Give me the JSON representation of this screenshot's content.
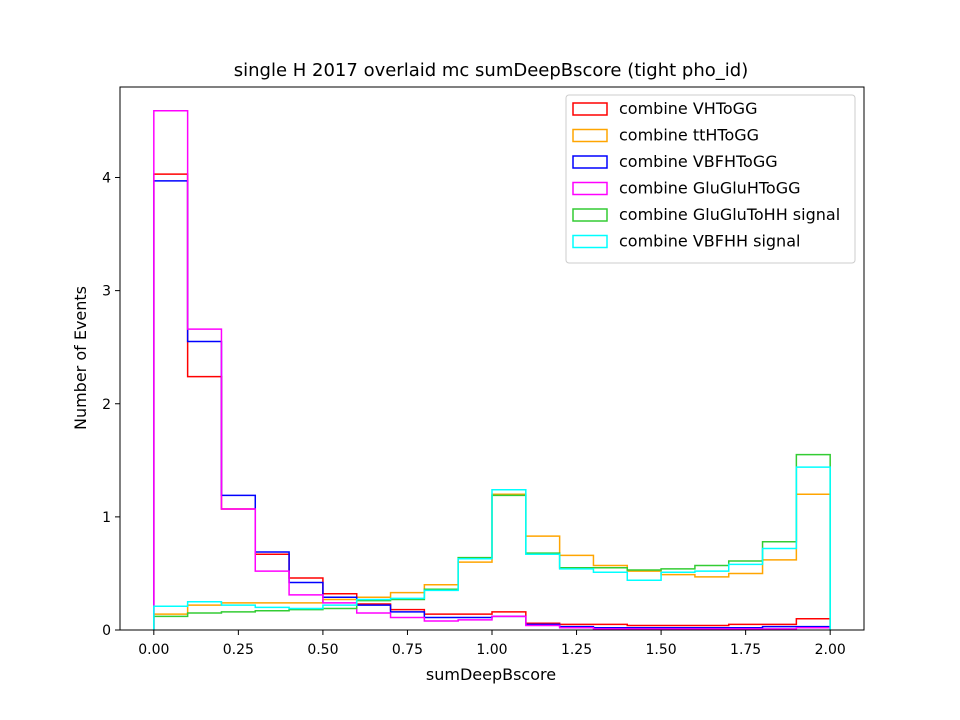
{
  "chart_data": {
    "type": "step-histogram",
    "title": "single H 2017 overlaid mc sumDeepBscore (tight pho_id)",
    "xlabel": "sumDeepBscore",
    "ylabel": "Number of Events",
    "xlim": [
      -0.1,
      2.1
    ],
    "ylim": [
      0,
      4.8
    ],
    "xticks": [
      0.0,
      0.25,
      0.5,
      0.75,
      1.0,
      1.25,
      1.5,
      1.75,
      2.0
    ],
    "xtick_labels": [
      "0.00",
      "0.25",
      "0.50",
      "0.75",
      "1.00",
      "1.25",
      "1.50",
      "1.75",
      "2.00"
    ],
    "yticks": [
      0,
      1,
      2,
      3,
      4
    ],
    "ytick_labels": [
      "0",
      "1",
      "2",
      "3",
      "4"
    ],
    "bin_edges": [
      0.0,
      0.1,
      0.2,
      0.3,
      0.4,
      0.5,
      0.6,
      0.7,
      0.8,
      0.9,
      1.0,
      1.1,
      1.2,
      1.3,
      1.4,
      1.5,
      1.6,
      1.7,
      1.8,
      1.9,
      2.0
    ],
    "legend_position": "upper-right",
    "grid": false,
    "series": [
      {
        "name": "combine VHToGG",
        "color": "#ff0000",
        "values": [
          4.03,
          2.24,
          1.07,
          0.67,
          0.46,
          0.32,
          0.23,
          0.18,
          0.14,
          0.14,
          0.16,
          0.06,
          0.05,
          0.05,
          0.04,
          0.04,
          0.04,
          0.05,
          0.05,
          0.1
        ]
      },
      {
        "name": "combine ttHToGG",
        "color": "#ffa500",
        "values": [
          0.14,
          0.22,
          0.24,
          0.24,
          0.24,
          0.27,
          0.29,
          0.33,
          0.4,
          0.6,
          1.2,
          0.83,
          0.66,
          0.57,
          0.52,
          0.49,
          0.47,
          0.5,
          0.62,
          1.2
        ]
      },
      {
        "name": "combine VBFHToGG",
        "color": "#0000ff",
        "values": [
          3.97,
          2.55,
          1.19,
          0.69,
          0.42,
          0.29,
          0.22,
          0.16,
          0.11,
          0.11,
          0.12,
          0.05,
          0.03,
          0.02,
          0.02,
          0.02,
          0.02,
          0.02,
          0.03,
          0.03
        ]
      },
      {
        "name": "combine GluGluHToGG",
        "color": "#ff00ff",
        "values": [
          4.59,
          2.66,
          1.07,
          0.52,
          0.31,
          0.24,
          0.15,
          0.11,
          0.08,
          0.09,
          0.12,
          0.04,
          0.02,
          0.01,
          0.01,
          0.01,
          0.01,
          0.01,
          0.01,
          0.02
        ]
      },
      {
        "name": "combine GluGluToHH signal",
        "color": "#33cc33",
        "values": [
          0.12,
          0.15,
          0.16,
          0.17,
          0.18,
          0.19,
          0.26,
          0.27,
          0.36,
          0.64,
          1.19,
          0.68,
          0.55,
          0.55,
          0.53,
          0.54,
          0.57,
          0.61,
          0.78,
          1.55
        ]
      },
      {
        "name": "combine VBFHH signal",
        "color": "#00ffff",
        "values": [
          0.21,
          0.25,
          0.22,
          0.2,
          0.19,
          0.22,
          0.27,
          0.28,
          0.35,
          0.63,
          1.24,
          0.67,
          0.54,
          0.51,
          0.44,
          0.51,
          0.52,
          0.58,
          0.72,
          1.44
        ]
      }
    ]
  }
}
